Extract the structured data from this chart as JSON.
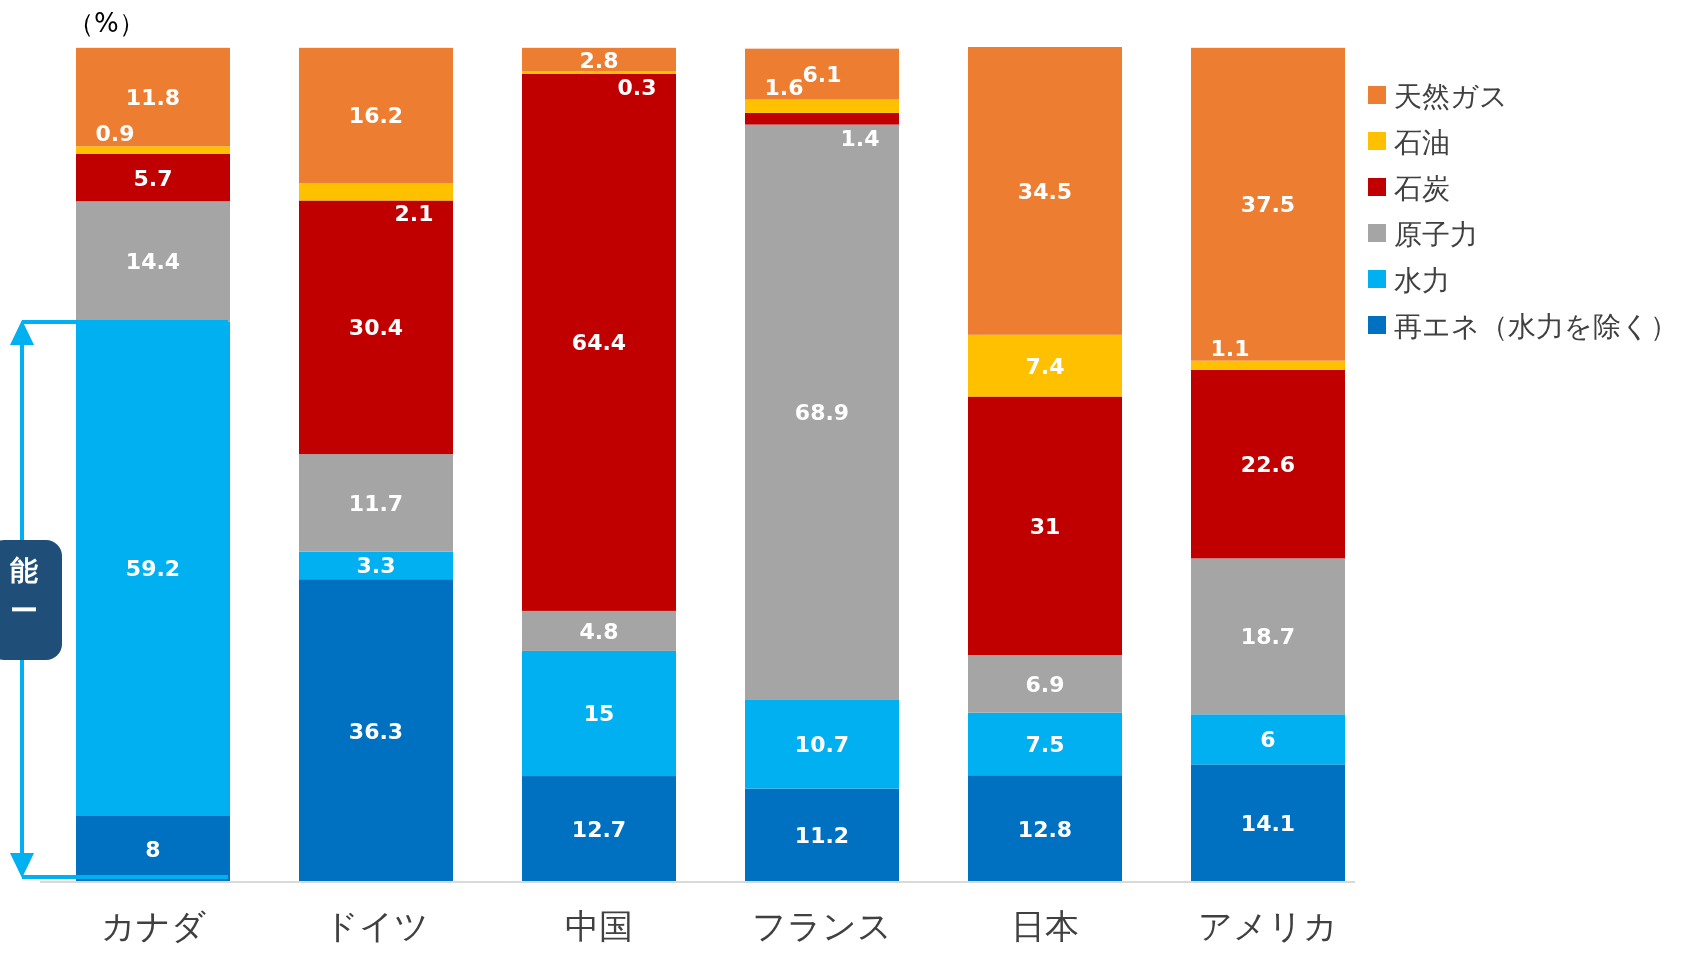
{
  "chart_data": {
    "type": "bar",
    "stacked": true,
    "data_labels": true,
    "legend": "right",
    "ylabel": "（%）",
    "categories": [
      "カナダ",
      "ドイツ",
      "中国",
      "フランス",
      "日本",
      "アメリカ"
    ],
    "series": [
      {
        "name": "再エネ（水力を除く）",
        "color": "#0070c0",
        "values": [
          8,
          36.3,
          12.7,
          11.2,
          12.8,
          14.1
        ]
      },
      {
        "name": "水力",
        "color": "#00b0f0",
        "values": [
          59.2,
          3.3,
          15,
          10.7,
          7.5,
          6
        ]
      },
      {
        "name": "原子力",
        "color": "#a5a5a5",
        "values": [
          14.4,
          11.7,
          4.8,
          68.9,
          6.9,
          18.7
        ]
      },
      {
        "name": "石炭",
        "color": "#c00000",
        "values": [
          5.7,
          30.4,
          64.4,
          1.4,
          31,
          22.6
        ]
      },
      {
        "name": "石油",
        "color": "#ffc000",
        "values": [
          0.9,
          2.1,
          0.3,
          1.6,
          7.4,
          1.1
        ]
      },
      {
        "name": "天然ガス",
        "color": "#ed7d31",
        "values": [
          11.8,
          16.2,
          2.8,
          6.1,
          34.5,
          37.5
        ]
      }
    ],
    "annotations": [
      "能ー"
    ]
  }
}
